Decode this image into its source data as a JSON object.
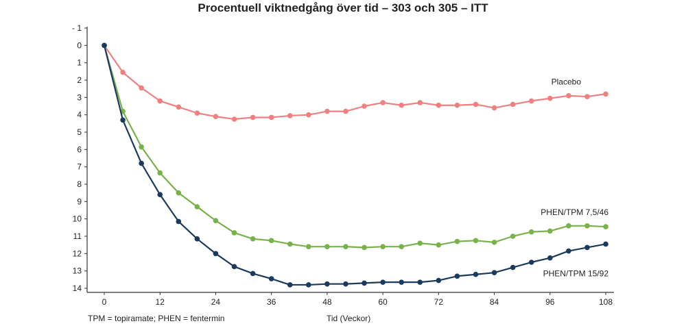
{
  "chart_data": {
    "type": "line",
    "title": "Procentuell viktnedgång över tid – 303 och 305  – ITT",
    "xlabel": "Tid (Veckor)",
    "ylabel": "",
    "footnote": "TPM = topiramate; PHEN = fentermin",
    "xlim": [
      0,
      108
    ],
    "ylim": [
      -1,
      14
    ],
    "y_inverted": true,
    "x_ticks": [
      0,
      12,
      24,
      36,
      48,
      60,
      72,
      84,
      96,
      108
    ],
    "y_ticks": [
      -1,
      0,
      1,
      2,
      3,
      4,
      5,
      6,
      7,
      8,
      9,
      10,
      11,
      12,
      13,
      14
    ],
    "y_tick_labels": [
      "- 1",
      "0",
      "1",
      "2",
      "3",
      "4",
      "5",
      "6",
      "7",
      "8",
      "9",
      "10",
      "11",
      "12",
      "13",
      "14"
    ],
    "x": [
      0,
      4,
      8,
      12,
      16,
      20,
      24,
      28,
      32,
      36,
      40,
      44,
      48,
      52,
      56,
      60,
      64,
      68,
      72,
      76,
      80,
      84,
      88,
      92,
      96,
      100,
      104,
      108
    ],
    "series": [
      {
        "name": "Placebo",
        "color": "#f08080",
        "values": [
          0,
          1.55,
          2.45,
          3.2,
          3.55,
          3.9,
          4.1,
          4.25,
          4.15,
          4.15,
          4.05,
          4.0,
          3.8,
          3.8,
          3.5,
          3.3,
          3.45,
          3.3,
          3.45,
          3.45,
          3.4,
          3.6,
          3.4,
          3.2,
          3.05,
          2.9,
          2.95,
          2.8
        ]
      },
      {
        "name": "PHEN/TPM 7,5/46",
        "color": "#77b24a",
        "values": [
          0,
          3.8,
          5.85,
          7.35,
          8.5,
          9.3,
          10.1,
          10.8,
          11.15,
          11.25,
          11.45,
          11.6,
          11.6,
          11.6,
          11.65,
          11.6,
          11.6,
          11.4,
          11.5,
          11.3,
          11.25,
          11.35,
          11.0,
          10.75,
          10.7,
          10.4,
          10.4,
          10.45
        ]
      },
      {
        "name": "PHEN/TPM 15/92",
        "color": "#1b3a5e",
        "values": [
          0,
          4.3,
          6.8,
          8.6,
          10.15,
          11.15,
          12.0,
          12.75,
          13.15,
          13.45,
          13.8,
          13.8,
          13.75,
          13.75,
          13.7,
          13.65,
          13.65,
          13.65,
          13.55,
          13.3,
          13.2,
          13.1,
          12.8,
          12.5,
          12.25,
          11.85,
          11.65,
          11.45
        ]
      }
    ]
  }
}
